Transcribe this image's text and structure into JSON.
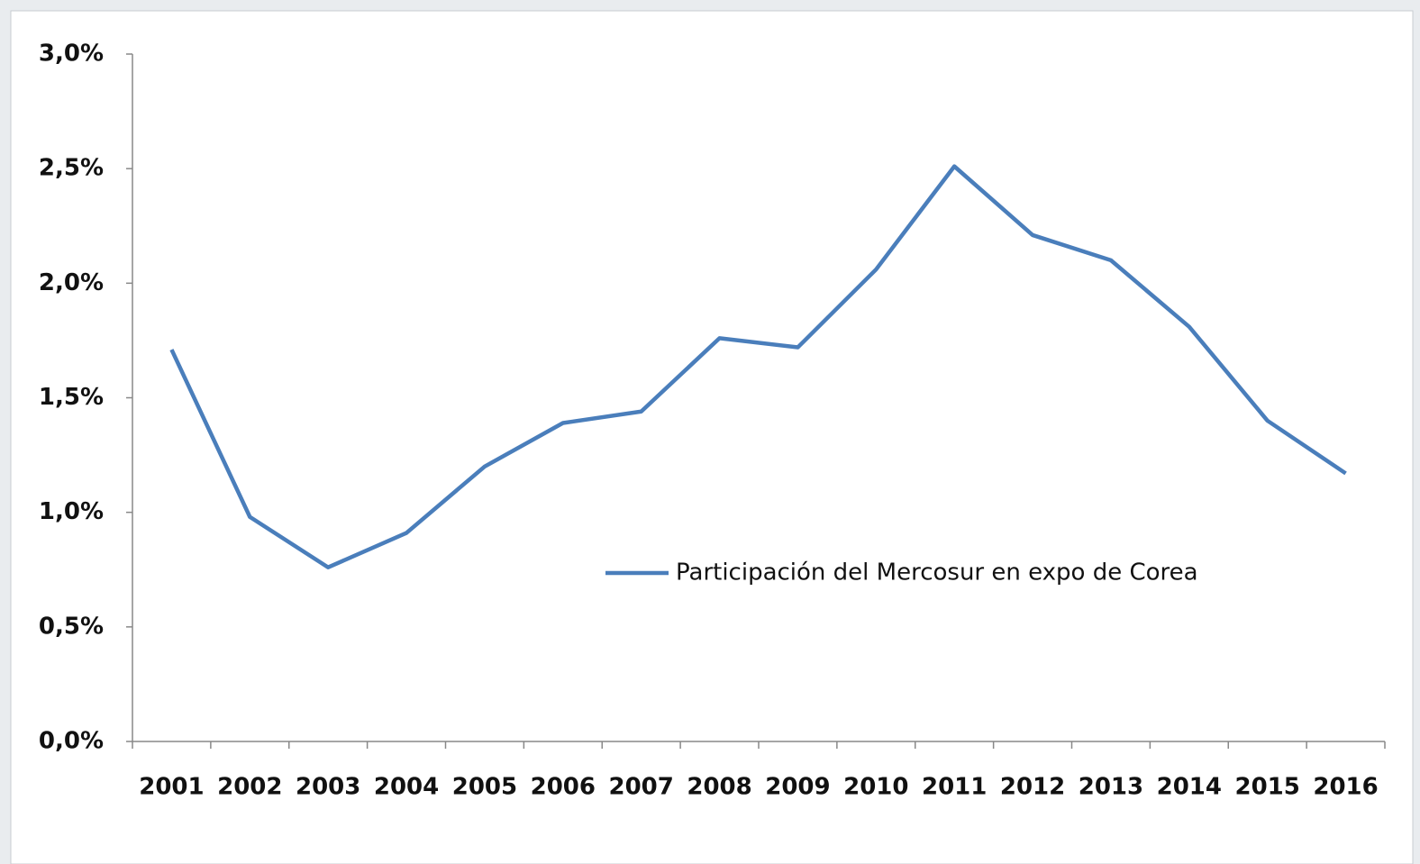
{
  "chart_data": {
    "type": "line",
    "categories": [
      "2001",
      "2002",
      "2003",
      "2004",
      "2005",
      "2006",
      "2007",
      "2008",
      "2009",
      "2010",
      "2011",
      "2012",
      "2013",
      "2014",
      "2015",
      "2016"
    ],
    "series": [
      {
        "name": "Participación del Mercosur en expo de Corea",
        "color": "#4a7ebb",
        "values": [
          1.71,
          0.98,
          0.76,
          0.91,
          1.2,
          1.39,
          1.44,
          1.76,
          1.72,
          2.06,
          2.51,
          2.21,
          2.1,
          1.81,
          1.4,
          1.17
        ]
      }
    ],
    "ylim": [
      0,
      3
    ],
    "yticks": [
      {
        "value": 0,
        "label": "0,0%"
      },
      {
        "value": 0.5,
        "label": "0,5%"
      },
      {
        "value": 1,
        "label": "1,0%"
      },
      {
        "value": 1.5,
        "label": "1,5%"
      },
      {
        "value": 2,
        "label": "2,0%"
      },
      {
        "value": 2.5,
        "label": "2,5%"
      },
      {
        "value": 3,
        "label": "3,0%"
      }
    ],
    "grid": false,
    "legend": "inside"
  }
}
